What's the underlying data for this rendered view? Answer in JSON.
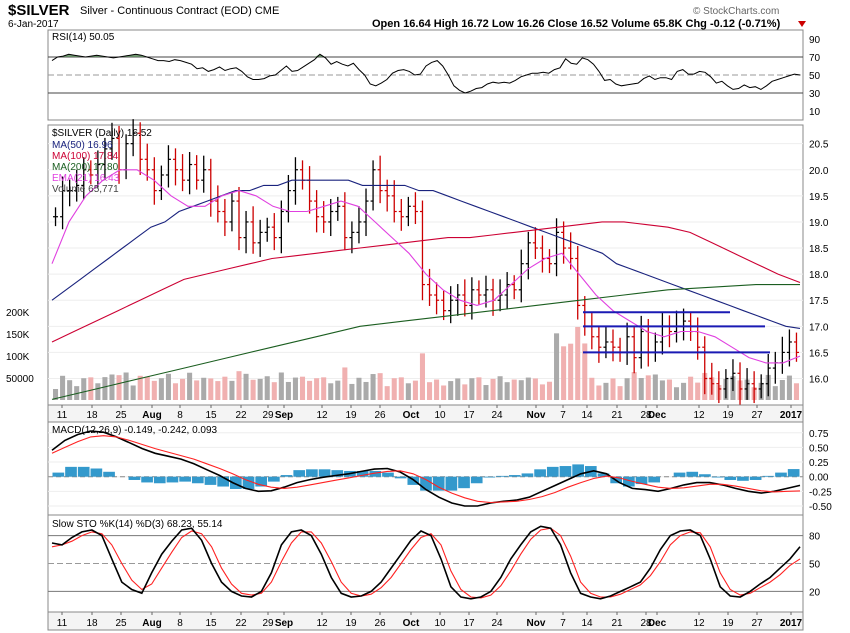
{
  "header": {
    "symbol": "$SILVER",
    "description": "Silver - Continuous Contract (EOD)",
    "exchange": "CME",
    "date": "6-Jan-2017",
    "credit": "© StockCharts.com",
    "quote": {
      "open": "Open 16.64",
      "high": "High 16.72",
      "low": "Low 16.26",
      "close": "Close 16.52",
      "volume": "Volume 65.8K",
      "change": "Chg -0.12 (-0.71%)"
    }
  },
  "colors": {
    "up_bar": "#000000",
    "down_bar": "#cc0000",
    "ma50": "#1a237e",
    "ma100": "#cc0033",
    "ma200": "#1b5e20",
    "ema21": "#e040e0",
    "vol_up": "#aaaaaa",
    "vol_down": "#f0b0b0",
    "support_lines": "#1a1ab4",
    "macd_hist": "#3399cc",
    "macd_line": "#000000",
    "signal_line": "#ff2222",
    "sto_k": "#000000",
    "sto_d": "#ff2222",
    "rsi_fill": "#5a8a5a"
  },
  "chart_data": [
    {
      "type": "line",
      "panel": "RSI",
      "label": "RSI(14) 50.05",
      "y_ticks": [
        "90",
        "70",
        "50",
        "30",
        "10"
      ],
      "series": [
        {
          "name": "RSI(14)",
          "values": [
            66,
            70,
            71,
            73,
            72,
            71,
            70,
            71,
            72,
            71,
            70,
            69,
            70,
            71,
            72,
            73,
            72,
            70,
            68,
            66,
            66,
            65,
            67,
            66,
            64,
            62,
            57,
            58,
            54,
            56,
            59,
            55,
            57,
            58,
            54,
            48,
            45,
            45,
            46,
            49,
            50,
            55,
            60,
            54,
            55,
            59,
            63,
            67,
            73,
            69,
            62,
            65,
            62,
            60,
            63,
            56,
            50,
            40,
            38,
            41,
            45,
            52,
            55,
            56,
            54,
            50,
            51,
            60,
            64,
            66,
            60,
            50,
            38,
            33,
            30,
            32,
            35,
            36,
            40,
            42,
            41,
            42,
            41,
            44,
            48,
            50,
            52,
            52,
            53,
            52,
            56,
            58,
            68,
            63,
            62,
            69,
            67,
            62,
            54,
            44,
            45,
            40,
            38,
            39,
            40,
            41,
            46,
            49,
            45,
            47,
            47,
            45,
            54,
            56,
            51,
            51,
            54,
            53,
            48,
            41,
            43,
            38,
            34,
            35,
            39,
            36,
            37,
            34,
            38,
            43,
            45,
            47,
            49,
            51,
            50
          ]
        }
      ]
    },
    {
      "type": "candlestick",
      "panel": "Price",
      "label": "$SILVER (Daily) 16.52",
      "y_ticks": [
        "20.5",
        "20.0",
        "19.5",
        "19.0",
        "18.5",
        "18.0",
        "17.5",
        "17.0",
        "16.5",
        "16.0"
      ],
      "legend": [
        "MA(50) 16.96",
        "MA(100) 17.84",
        "MA(200) 17.80",
        "EMA(21) 16.43",
        "Volume 65,771"
      ],
      "volume_ticks": [
        "200K",
        "150K",
        "100K",
        "50000"
      ],
      "support_lines": [
        17.27,
        17.0,
        16.5
      ],
      "series": [
        {
          "name": "close",
          "values": [
            19.1,
            19.6,
            19.6,
            19.7,
            20.0,
            19.9,
            20.1,
            20.4,
            20.6,
            20.0,
            20.5,
            20.7,
            20.2,
            20.0,
            19.6,
            19.9,
            20.2,
            20.0,
            19.8,
            20.1,
            19.8,
            20.0,
            19.4,
            19.2,
            19.0,
            19.4,
            18.7,
            19.0,
            18.6,
            18.8,
            18.9,
            18.7,
            19.2,
            19.6,
            20.0,
            19.8,
            19.4,
            19.1,
            19.0,
            19.2,
            19.3,
            18.7,
            18.8,
            19.0,
            19.4,
            20.0,
            19.6,
            19.5,
            19.2,
            19.1,
            19.3,
            19.2,
            17.8,
            17.6,
            17.5,
            17.3,
            17.5,
            17.6,
            17.4,
            17.7,
            17.6,
            17.7,
            17.5,
            17.6,
            17.8,
            17.7,
            18.2,
            18.6,
            18.5,
            18.3,
            18.2,
            18.8,
            18.5,
            18.3,
            17.4,
            17.0,
            16.8,
            16.6,
            16.7,
            16.6,
            16.5,
            16.8,
            16.4,
            16.9,
            16.5,
            16.7,
            17.0,
            16.9,
            17.0,
            17.1,
            16.9,
            16.6,
            16.0,
            15.9,
            15.8,
            16.0,
            16.1,
            15.8,
            15.9,
            15.8,
            15.9,
            16.2,
            16.3,
            16.5,
            16.7,
            16.5
          ]
        },
        {
          "name": "MA(50)",
          "values": [
            17.5,
            17.7,
            17.9,
            18.1,
            18.3,
            18.5,
            18.7,
            18.9,
            19.0,
            19.2,
            19.3,
            19.4,
            19.5,
            19.6,
            19.6,
            19.7,
            19.7,
            19.8,
            19.8,
            19.8,
            19.8,
            19.8,
            19.7,
            19.7,
            19.7,
            19.7,
            19.6,
            19.6,
            19.5,
            19.4,
            19.3,
            19.2,
            19.1,
            19.0,
            18.9,
            18.8,
            18.7,
            18.6,
            18.5,
            18.4,
            18.2,
            18.1,
            18.0,
            17.9,
            17.8,
            17.7,
            17.6,
            17.5,
            17.4,
            17.3,
            17.2,
            17.1,
            17.0,
            16.96
          ]
        },
        {
          "name": "MA(100)",
          "values": [
            16.7,
            16.9,
            17.1,
            17.3,
            17.5,
            17.7,
            17.9,
            18.0,
            18.1,
            18.2,
            18.3,
            18.35,
            18.4,
            18.45,
            18.5,
            18.55,
            18.6,
            18.65,
            18.7,
            18.7,
            18.75,
            18.8,
            18.85,
            18.9,
            18.95,
            19.0,
            19.0,
            18.95,
            18.9,
            18.8,
            18.6,
            18.4,
            18.2,
            18.0,
            17.84
          ]
        },
        {
          "name": "MA(200)",
          "values": [
            15.6,
            15.8,
            16.0,
            16.2,
            16.4,
            16.6,
            16.8,
            17.0,
            17.1,
            17.2,
            17.3,
            17.4,
            17.5,
            17.6,
            17.7,
            17.75,
            17.8,
            17.8
          ]
        },
        {
          "name": "EMA(21)",
          "values": [
            18.2,
            19.0,
            19.5,
            19.8,
            20.0,
            20.0,
            19.8,
            19.5,
            19.3,
            19.3,
            19.5,
            19.6,
            19.5,
            19.3,
            19.2,
            19.2,
            19.3,
            19.4,
            19.3,
            19.0,
            18.7,
            18.4,
            18.0,
            17.7,
            17.5,
            17.4,
            17.5,
            17.8,
            18.1,
            18.3,
            18.4,
            18.0,
            17.6,
            17.3,
            17.1,
            16.9,
            16.8,
            16.9,
            16.9,
            16.8,
            16.6,
            16.4,
            16.3,
            16.3,
            16.43
          ]
        }
      ]
    },
    {
      "type": "line",
      "panel": "MACD",
      "label": "MACD(12,26,9) -0.149, -0.242, 0.093",
      "y_ticks": [
        "0.75",
        "0.50",
        "0.25",
        "0.00",
        "-0.25",
        "-0.50"
      ],
      "series": [
        {
          "name": "MACD",
          "values": [
            0.45,
            0.62,
            0.72,
            0.78,
            0.76,
            0.68,
            0.58,
            0.48,
            0.4,
            0.35,
            0.3,
            0.22,
            0.12,
            0.02,
            -0.1,
            -0.2,
            -0.25,
            -0.24,
            -0.18,
            -0.1,
            -0.05,
            -0.01,
            0.02,
            0.05,
            0.09,
            0.13,
            0.14,
            0.08,
            -0.05,
            -0.22,
            -0.35,
            -0.45,
            -0.5,
            -0.5,
            -0.45,
            -0.42,
            -0.4,
            -0.35,
            -0.25,
            -0.15,
            -0.05,
            0.05,
            0.1,
            0.05,
            -0.1,
            -0.2,
            -0.22,
            -0.25,
            -0.2,
            -0.14,
            -0.1,
            -0.1,
            -0.14,
            -0.2,
            -0.25,
            -0.28,
            -0.25,
            -0.2,
            -0.149
          ]
        },
        {
          "name": "Signal",
          "values": [
            0.4,
            0.5,
            0.6,
            0.68,
            0.7,
            0.68,
            0.62,
            0.55,
            0.48,
            0.42,
            0.36,
            0.3,
            0.22,
            0.14,
            0.05,
            -0.05,
            -0.13,
            -0.18,
            -0.2,
            -0.18,
            -0.14,
            -0.1,
            -0.06,
            -0.02,
            0.02,
            0.06,
            0.09,
            0.1,
            0.05,
            -0.05,
            -0.18,
            -0.28,
            -0.36,
            -0.42,
            -0.44,
            -0.43,
            -0.42,
            -0.39,
            -0.34,
            -0.27,
            -0.18,
            -0.1,
            -0.03,
            0.01,
            -0.02,
            -0.08,
            -0.13,
            -0.18,
            -0.2,
            -0.19,
            -0.16,
            -0.13,
            -0.13,
            -0.16,
            -0.2,
            -0.24,
            -0.26,
            -0.25,
            -0.242
          ]
        }
      ]
    },
    {
      "type": "line",
      "panel": "Slow STO",
      "label": "Slow STO %K(14) %D(3) 68.23, 55.14",
      "y_ticks": [
        "80",
        "50",
        "20"
      ],
      "series": [
        {
          "name": "%K",
          "values": [
            72,
            70,
            78,
            84,
            86,
            80,
            55,
            30,
            22,
            18,
            40,
            60,
            74,
            86,
            88,
            75,
            50,
            30,
            20,
            15,
            14,
            20,
            40,
            70,
            84,
            86,
            80,
            60,
            35,
            18,
            14,
            15,
            20,
            30,
            45,
            60,
            75,
            85,
            80,
            55,
            25,
            14,
            12,
            14,
            20,
            35,
            55,
            70,
            84,
            90,
            88,
            70,
            40,
            18,
            14,
            12,
            15,
            20,
            25,
            30,
            45,
            65,
            80,
            85,
            86,
            80,
            55,
            25,
            15,
            14,
            20,
            28,
            35,
            45,
            55,
            68
          ]
        },
        {
          "name": "%D",
          "values": [
            68,
            70,
            74,
            80,
            84,
            82,
            70,
            50,
            32,
            22,
            28,
            45,
            62,
            78,
            85,
            82,
            68,
            45,
            28,
            18,
            16,
            18,
            30,
            52,
            72,
            84,
            84,
            72,
            52,
            30,
            18,
            15,
            17,
            24,
            35,
            50,
            65,
            78,
            82,
            70,
            42,
            22,
            14,
            13,
            16,
            26,
            42,
            60,
            76,
            86,
            88,
            80,
            58,
            30,
            18,
            14,
            14,
            17,
            22,
            27,
            37,
            52,
            70,
            80,
            84,
            83,
            68,
            40,
            22,
            16,
            18,
            24,
            30,
            38,
            48,
            55
          ]
        }
      ]
    }
  ],
  "x_axis": {
    "labels": [
      "11",
      "18",
      "25",
      "Aug",
      "8",
      "15",
      "22",
      "29",
      "Sep",
      "12",
      "19",
      "26",
      "Oct",
      "10",
      "17",
      "24",
      "Nov",
      "7",
      "14",
      "21",
      "28",
      "Dec",
      "12",
      "19",
      "27",
      "2017"
    ],
    "bold_labels": [
      "Aug",
      "Sep",
      "Oct",
      "Nov",
      "Dec",
      "2017"
    ]
  }
}
